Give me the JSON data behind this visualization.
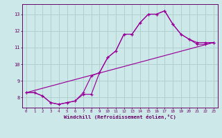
{
  "bg_color": "#cde8e8",
  "line_color": "#990099",
  "grid_color": "#b0d0d0",
  "axis_color": "#660066",
  "tick_color": "#660066",
  "xlabel": "Windchill (Refroidissement éolien,°C)",
  "xlim": [
    -0.5,
    23.5
  ],
  "ylim": [
    7.4,
    13.6
  ],
  "yticks": [
    8,
    9,
    10,
    11,
    12,
    13
  ],
  "xticks": [
    0,
    1,
    2,
    3,
    4,
    5,
    6,
    7,
    8,
    9,
    10,
    11,
    12,
    13,
    14,
    15,
    16,
    17,
    18,
    19,
    20,
    21,
    22,
    23
  ],
  "series1_x": [
    0,
    1,
    2,
    3,
    4,
    5,
    6,
    7,
    8,
    9,
    10,
    11,
    12,
    13,
    14,
    15,
    16,
    17,
    18,
    19,
    20,
    21,
    22,
    23
  ],
  "series1_y": [
    8.3,
    8.3,
    8.1,
    7.7,
    7.6,
    7.7,
    7.8,
    8.2,
    8.2,
    9.5,
    10.4,
    10.8,
    11.8,
    11.8,
    12.5,
    13.0,
    13.0,
    13.2,
    12.4,
    11.8,
    11.5,
    11.2,
    11.2,
    11.3
  ],
  "series2_x": [
    0,
    1,
    2,
    3,
    4,
    5,
    6,
    7,
    8,
    9,
    10,
    11,
    12,
    13,
    14,
    15,
    16,
    17,
    18,
    19,
    20,
    21,
    22,
    23
  ],
  "series2_y": [
    8.3,
    8.3,
    8.1,
    7.7,
    7.6,
    7.7,
    7.8,
    8.3,
    9.3,
    9.5,
    10.4,
    10.8,
    11.8,
    11.8,
    12.5,
    13.0,
    13.0,
    13.2,
    12.4,
    11.8,
    11.5,
    11.3,
    11.3,
    11.3
  ],
  "series3_x": [
    0,
    23
  ],
  "series3_y": [
    8.3,
    11.3
  ]
}
